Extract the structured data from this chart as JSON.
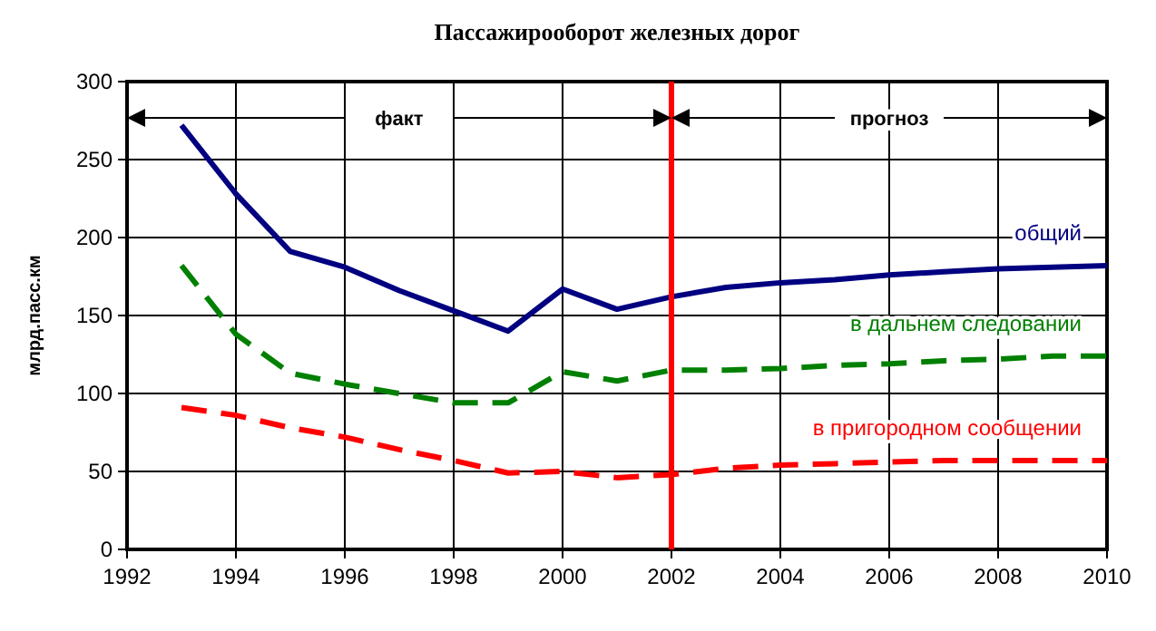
{
  "chart_data": {
    "type": "line",
    "title": "Пассажирооборот железных дорог",
    "ylabel": "млрд.пасс.км",
    "x": [
      1993,
      1994,
      1995,
      1996,
      1997,
      1998,
      1999,
      2000,
      2001,
      2002,
      2003,
      2004,
      2005,
      2006,
      2007,
      2008,
      2009,
      2010
    ],
    "series": [
      {
        "name": "общий",
        "color": "#000080",
        "line_style": "solid",
        "values": [
          272,
          228,
          191,
          181,
          166,
          153,
          140,
          167,
          154,
          162,
          168,
          171,
          173,
          176,
          178,
          180,
          181,
          182
        ]
      },
      {
        "name": "в дальнем следовании",
        "color": "#008000",
        "line_style": "dashed",
        "values": [
          182,
          138,
          113,
          106,
          100,
          94,
          94,
          114,
          108,
          115,
          115,
          116,
          118,
          119,
          121,
          122,
          124,
          124
        ]
      },
      {
        "name": "в пригородном сообщении",
        "color": "#ff0000",
        "line_style": "dashed",
        "values": [
          91,
          86,
          78,
          72,
          64,
          57,
          49,
          50,
          46,
          48,
          52,
          54,
          55,
          56,
          57,
          57,
          57,
          57
        ]
      }
    ],
    "xlim": [
      1992,
      2010
    ],
    "xticks": [
      1992,
      1994,
      1996,
      1998,
      2000,
      2002,
      2004,
      2006,
      2008,
      2010
    ],
    "ylim": [
      0,
      300
    ],
    "yticks": [
      0,
      50,
      100,
      150,
      200,
      250,
      300
    ],
    "grid": true,
    "ref_lines": [
      {
        "axis": "x",
        "value": 2002,
        "color": "#ff0000"
      }
    ],
    "annotations": [
      "факт",
      "прогноз"
    ]
  }
}
